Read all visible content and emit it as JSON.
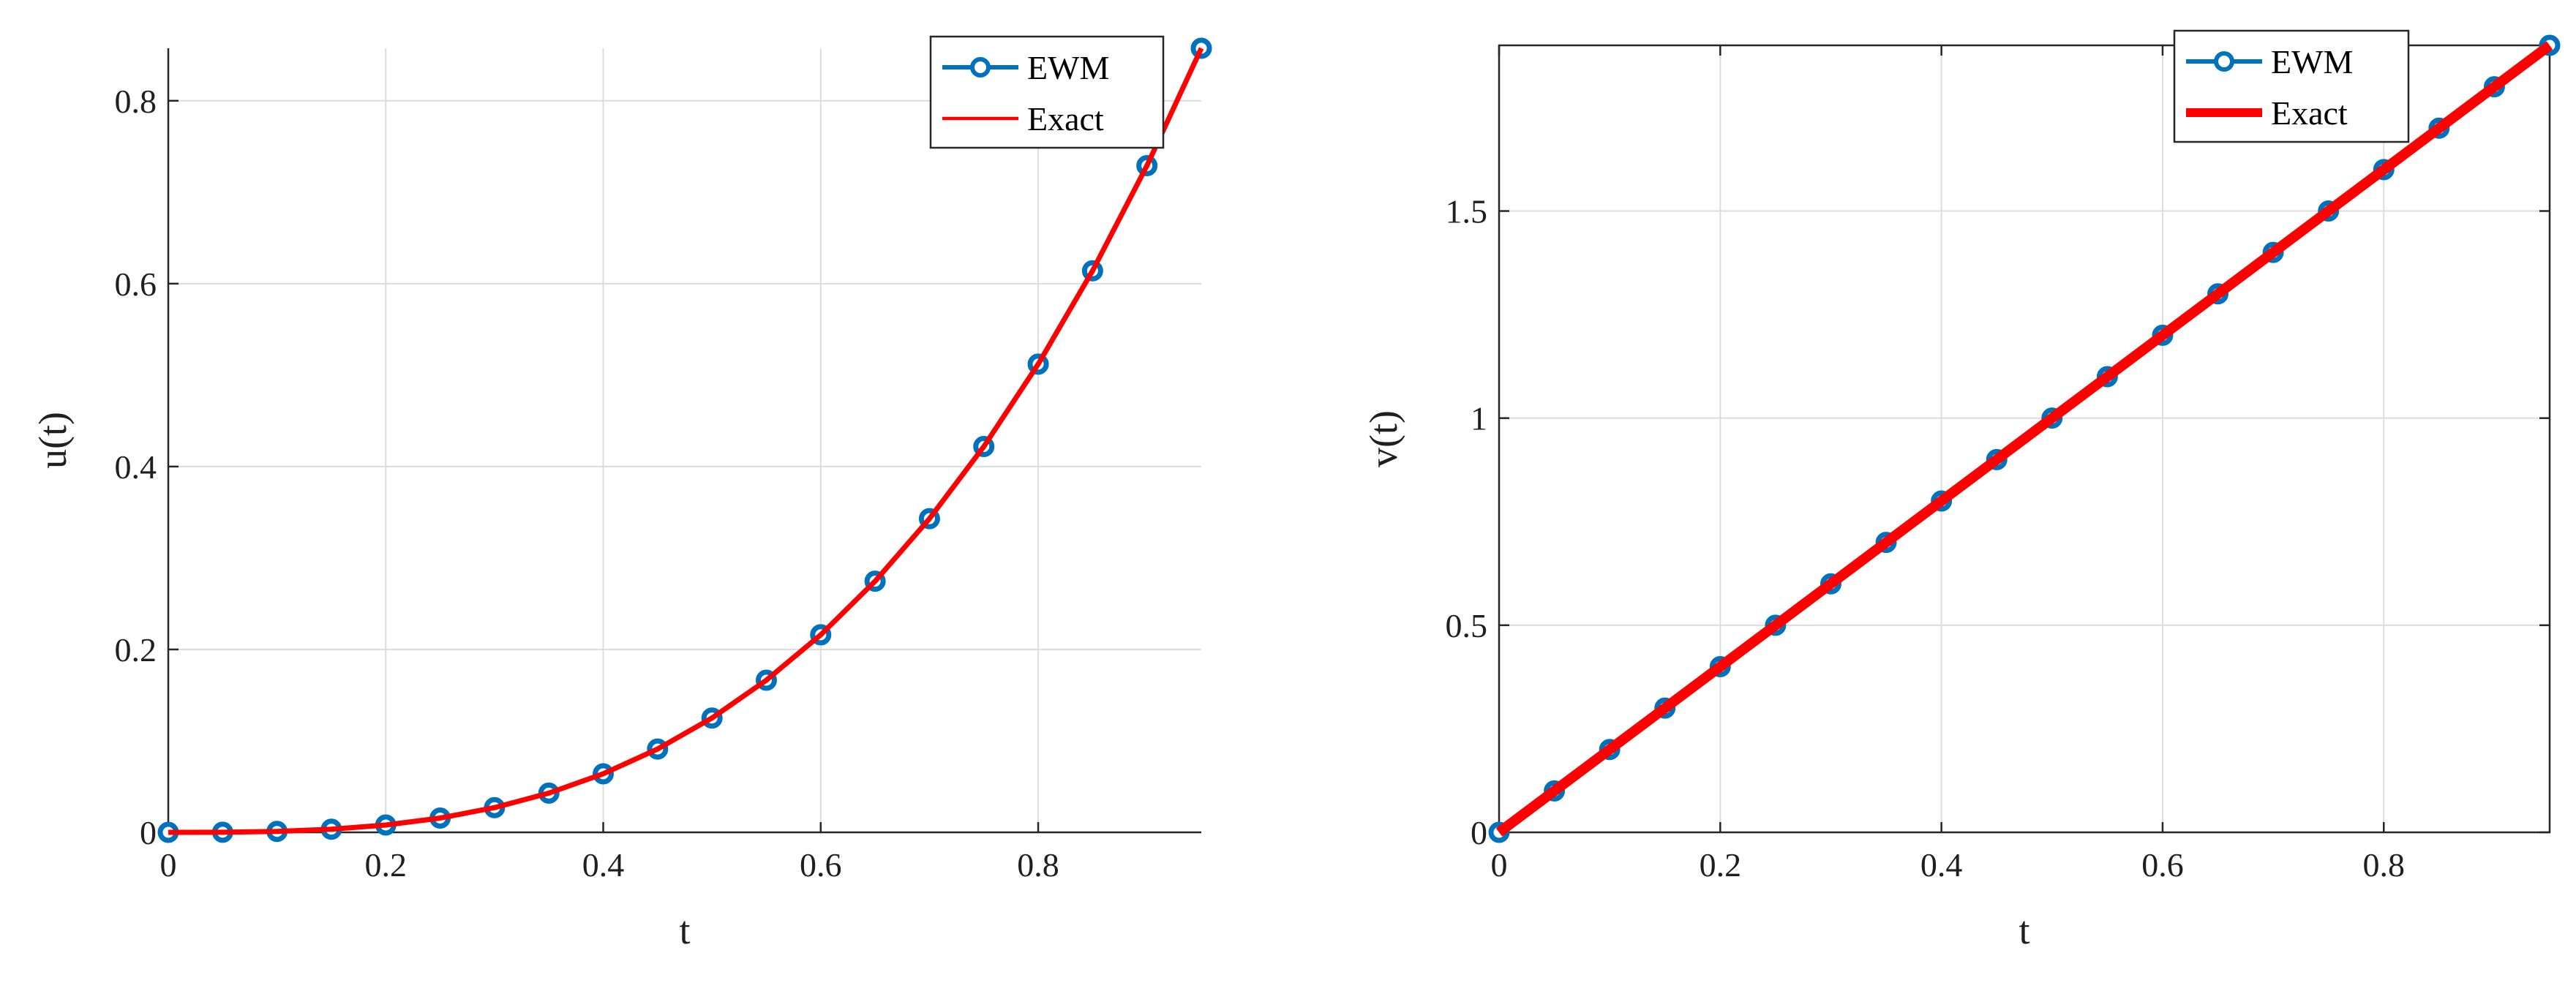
{
  "chart_data": [
    {
      "type": "line",
      "xlabel": "t",
      "ylabel": "u(t)",
      "xlim": [
        0,
        0.95
      ],
      "ylim": [
        0,
        0.8574
      ],
      "xticks": [
        0,
        0.2,
        0.4,
        0.6,
        0.8
      ],
      "xtick_labels": [
        "0",
        "0.2",
        "0.4",
        "0.6",
        "0.8"
      ],
      "yticks": [
        0,
        0.2,
        0.4,
        0.6,
        0.8
      ],
      "ytick_labels": [
        "0",
        "0.2",
        "0.4",
        "0.6",
        "0.8"
      ],
      "grid": true,
      "legend_position": "top-right",
      "x": [
        0,
        0.05,
        0.1,
        0.15,
        0.2,
        0.25,
        0.3,
        0.35,
        0.4,
        0.45,
        0.5,
        0.55,
        0.6,
        0.65,
        0.7,
        0.75,
        0.8,
        0.85,
        0.9,
        0.95
      ],
      "series": [
        {
          "name": "EWM",
          "style": "line-with-circle-markers",
          "color": "#0072BD",
          "values": [
            0,
            0.0001,
            0.001,
            0.0034,
            0.008,
            0.0156,
            0.027,
            0.0429,
            0.064,
            0.0911,
            0.125,
            0.1664,
            0.216,
            0.2746,
            0.343,
            0.4219,
            0.512,
            0.6141,
            0.729,
            0.8574
          ]
        },
        {
          "name": "Exact",
          "style": "line",
          "color": "#FF0000",
          "values": [
            0,
            0.0001,
            0.001,
            0.0034,
            0.008,
            0.0156,
            0.027,
            0.0429,
            0.064,
            0.0911,
            0.125,
            0.1664,
            0.216,
            0.2746,
            0.343,
            0.4219,
            0.512,
            0.6141,
            0.729,
            0.8574
          ]
        }
      ]
    },
    {
      "type": "line",
      "xlabel": "t",
      "ylabel": "v(t)",
      "xlim": [
        0,
        0.95
      ],
      "ylim": [
        0,
        1.9
      ],
      "xticks": [
        0,
        0.2,
        0.4,
        0.6,
        0.8
      ],
      "xtick_labels": [
        "0",
        "0.2",
        "0.4",
        "0.6",
        "0.8"
      ],
      "yticks": [
        0,
        0.5,
        1,
        1.5
      ],
      "ytick_labels": [
        "0",
        "0.5",
        "1",
        "1.5"
      ],
      "grid": true,
      "legend_position": "top-right",
      "x": [
        0,
        0.05,
        0.1,
        0.15,
        0.2,
        0.25,
        0.3,
        0.35,
        0.4,
        0.45,
        0.5,
        0.55,
        0.6,
        0.65,
        0.7,
        0.75,
        0.8,
        0.85,
        0.9,
        0.95
      ],
      "series": [
        {
          "name": "EWM",
          "style": "line-with-circle-markers",
          "color": "#0072BD",
          "values": [
            0,
            0.1,
            0.2,
            0.3,
            0.4,
            0.5,
            0.6,
            0.7,
            0.8,
            0.9,
            1.0,
            1.1,
            1.2,
            1.3,
            1.4,
            1.5,
            1.6,
            1.7,
            1.8,
            1.9
          ]
        },
        {
          "name": "Exact",
          "style": "line",
          "color": "#FF0000",
          "values": [
            0,
            0.1,
            0.2,
            0.3,
            0.4,
            0.5,
            0.6,
            0.7,
            0.8,
            0.9,
            1.0,
            1.1,
            1.2,
            1.3,
            1.4,
            1.5,
            1.6,
            1.7,
            1.8,
            1.9
          ]
        }
      ]
    }
  ]
}
